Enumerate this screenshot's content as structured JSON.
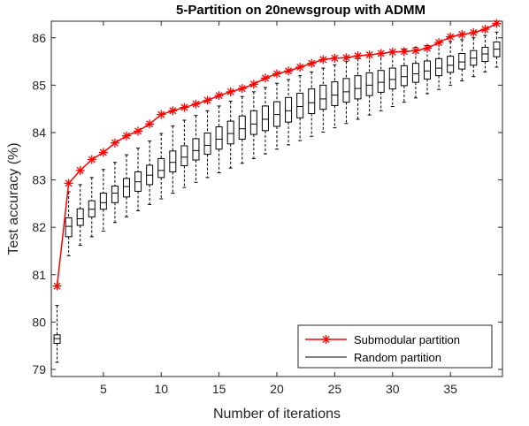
{
  "chart_data": {
    "type": "line",
    "title": "5-Partition on 20newsgroup with ADMM",
    "xlabel": "Number of iterations",
    "ylabel": "Test accuracy (%)",
    "xlim": [
      0.5,
      39.5
    ],
    "ylim": [
      78.85,
      86.35
    ],
    "xticks": [
      5,
      10,
      15,
      20,
      25,
      30,
      35
    ],
    "yticks": [
      79,
      80,
      81,
      82,
      83,
      84,
      85,
      86
    ],
    "legend_position": "bottom-right",
    "series": [
      {
        "name": "Submodular partition",
        "color": "#ff0000",
        "marker": "asterisk",
        "x": [
          1,
          2,
          3,
          4,
          5,
          6,
          7,
          8,
          9,
          10,
          11,
          12,
          13,
          14,
          15,
          16,
          17,
          18,
          19,
          20,
          21,
          22,
          23,
          24,
          25,
          26,
          27,
          28,
          29,
          30,
          31,
          32,
          33,
          34,
          35,
          36,
          37,
          38,
          39
        ],
        "values": [
          80.76,
          82.93,
          83.2,
          83.43,
          83.58,
          83.78,
          83.93,
          84.03,
          84.18,
          84.38,
          84.46,
          84.53,
          84.6,
          84.68,
          84.78,
          84.86,
          84.93,
          85.02,
          85.15,
          85.24,
          85.3,
          85.38,
          85.46,
          85.54,
          85.57,
          85.58,
          85.62,
          85.64,
          85.67,
          85.7,
          85.71,
          85.73,
          85.78,
          85.9,
          86.02,
          86.07,
          86.11,
          86.18,
          86.3
        ]
      },
      {
        "name": "Random partition",
        "color": "#000000",
        "type": "box",
        "boxes": [
          {
            "x": 1,
            "whislo": 79.15,
            "q1": 79.55,
            "med": 79.65,
            "q3": 79.73,
            "whishi": 80.35
          },
          {
            "x": 2,
            "whislo": 81.4,
            "q1": 81.8,
            "med": 82.02,
            "q3": 82.2,
            "whishi": 82.75
          },
          {
            "x": 3,
            "whislo": 81.62,
            "q1": 82.04,
            "med": 82.18,
            "q3": 82.39,
            "whishi": 82.9
          },
          {
            "x": 4,
            "whislo": 81.8,
            "q1": 82.22,
            "med": 82.38,
            "q3": 82.56,
            "whishi": 83.05
          },
          {
            "x": 5,
            "whislo": 81.92,
            "q1": 82.38,
            "med": 82.52,
            "q3": 82.72,
            "whishi": 83.22
          },
          {
            "x": 6,
            "whislo": 82.1,
            "q1": 82.52,
            "med": 82.72,
            "q3": 82.87,
            "whishi": 83.37
          },
          {
            "x": 7,
            "whislo": 82.22,
            "q1": 82.64,
            "med": 82.86,
            "q3": 83.03,
            "whishi": 83.53
          },
          {
            "x": 8,
            "whislo": 82.35,
            "q1": 82.76,
            "med": 82.96,
            "q3": 83.17,
            "whishi": 83.67
          },
          {
            "x": 9,
            "whislo": 82.48,
            "q1": 82.9,
            "med": 83.1,
            "q3": 83.31,
            "whishi": 83.82
          },
          {
            "x": 10,
            "whislo": 82.6,
            "q1": 83.05,
            "med": 83.2,
            "q3": 83.45,
            "whishi": 83.98
          },
          {
            "x": 11,
            "whislo": 82.72,
            "q1": 83.17,
            "med": 83.37,
            "q3": 83.61,
            "whishi": 84.14
          },
          {
            "x": 12,
            "whislo": 82.84,
            "q1": 83.3,
            "med": 83.48,
            "q3": 83.72,
            "whishi": 84.26
          },
          {
            "x": 13,
            "whislo": 82.95,
            "q1": 83.42,
            "med": 83.62,
            "q3": 83.87,
            "whishi": 84.36
          },
          {
            "x": 14,
            "whislo": 83.05,
            "q1": 83.54,
            "med": 83.73,
            "q3": 83.99,
            "whishi": 84.46
          },
          {
            "x": 15,
            "whislo": 83.15,
            "q1": 83.65,
            "med": 83.86,
            "q3": 84.12,
            "whishi": 84.56
          },
          {
            "x": 16,
            "whislo": 83.25,
            "q1": 83.76,
            "med": 83.98,
            "q3": 84.24,
            "whishi": 84.66
          },
          {
            "x": 17,
            "whislo": 83.35,
            "q1": 83.86,
            "med": 84.08,
            "q3": 84.35,
            "whishi": 84.76
          },
          {
            "x": 18,
            "whislo": 83.45,
            "q1": 83.96,
            "med": 84.18,
            "q3": 84.46,
            "whishi": 84.86
          },
          {
            "x": 19,
            "whislo": 83.55,
            "q1": 84.04,
            "med": 84.28,
            "q3": 84.56,
            "whishi": 84.95
          },
          {
            "x": 20,
            "whislo": 83.65,
            "q1": 84.13,
            "med": 84.38,
            "q3": 84.65,
            "whishi": 85.04
          },
          {
            "x": 21,
            "whislo": 83.74,
            "q1": 84.22,
            "med": 84.46,
            "q3": 84.74,
            "whishi": 85.12
          },
          {
            "x": 22,
            "whislo": 83.83,
            "q1": 84.31,
            "med": 84.55,
            "q3": 84.83,
            "whishi": 85.2
          },
          {
            "x": 23,
            "whislo": 83.92,
            "q1": 84.4,
            "med": 84.63,
            "q3": 84.92,
            "whishi": 85.28
          },
          {
            "x": 24,
            "whislo": 84.01,
            "q1": 84.49,
            "med": 84.71,
            "q3": 85.0,
            "whishi": 85.36
          },
          {
            "x": 25,
            "whislo": 84.1,
            "q1": 84.57,
            "med": 84.79,
            "q3": 85.07,
            "whishi": 85.43
          },
          {
            "x": 26,
            "whislo": 84.19,
            "q1": 84.64,
            "med": 84.86,
            "q3": 85.14,
            "whishi": 85.5
          },
          {
            "x": 27,
            "whislo": 84.28,
            "q1": 84.71,
            "med": 84.93,
            "q3": 85.2,
            "whishi": 85.56
          },
          {
            "x": 28,
            "whislo": 84.37,
            "q1": 84.78,
            "med": 85.0,
            "q3": 85.26,
            "whishi": 85.62
          },
          {
            "x": 29,
            "whislo": 84.46,
            "q1": 84.85,
            "med": 85.06,
            "q3": 85.31,
            "whishi": 85.67
          },
          {
            "x": 30,
            "whislo": 84.55,
            "q1": 84.92,
            "med": 85.12,
            "q3": 85.36,
            "whishi": 85.72
          },
          {
            "x": 31,
            "whislo": 84.64,
            "q1": 84.99,
            "med": 85.18,
            "q3": 85.41,
            "whishi": 85.76
          },
          {
            "x": 32,
            "whislo": 84.73,
            "q1": 85.06,
            "med": 85.24,
            "q3": 85.46,
            "whishi": 85.8
          },
          {
            "x": 33,
            "whislo": 84.82,
            "q1": 85.13,
            "med": 85.3,
            "q3": 85.51,
            "whishi": 85.84
          },
          {
            "x": 34,
            "whislo": 84.91,
            "q1": 85.2,
            "med": 85.36,
            "q3": 85.56,
            "whishi": 85.88
          },
          {
            "x": 35,
            "whislo": 85.0,
            "q1": 85.27,
            "med": 85.42,
            "q3": 85.61,
            "whishi": 85.92
          },
          {
            "x": 36,
            "whislo": 85.09,
            "q1": 85.34,
            "med": 85.49,
            "q3": 85.67,
            "whishi": 85.96
          },
          {
            "x": 37,
            "whislo": 85.18,
            "q1": 85.42,
            "med": 85.57,
            "q3": 85.73,
            "whishi": 86.0
          },
          {
            "x": 38,
            "whislo": 85.28,
            "q1": 85.5,
            "med": 85.66,
            "q3": 85.8,
            "whishi": 86.05
          },
          {
            "x": 39,
            "whislo": 85.38,
            "q1": 85.6,
            "med": 85.76,
            "q3": 85.91,
            "whishi": 86.12
          }
        ]
      }
    ]
  }
}
